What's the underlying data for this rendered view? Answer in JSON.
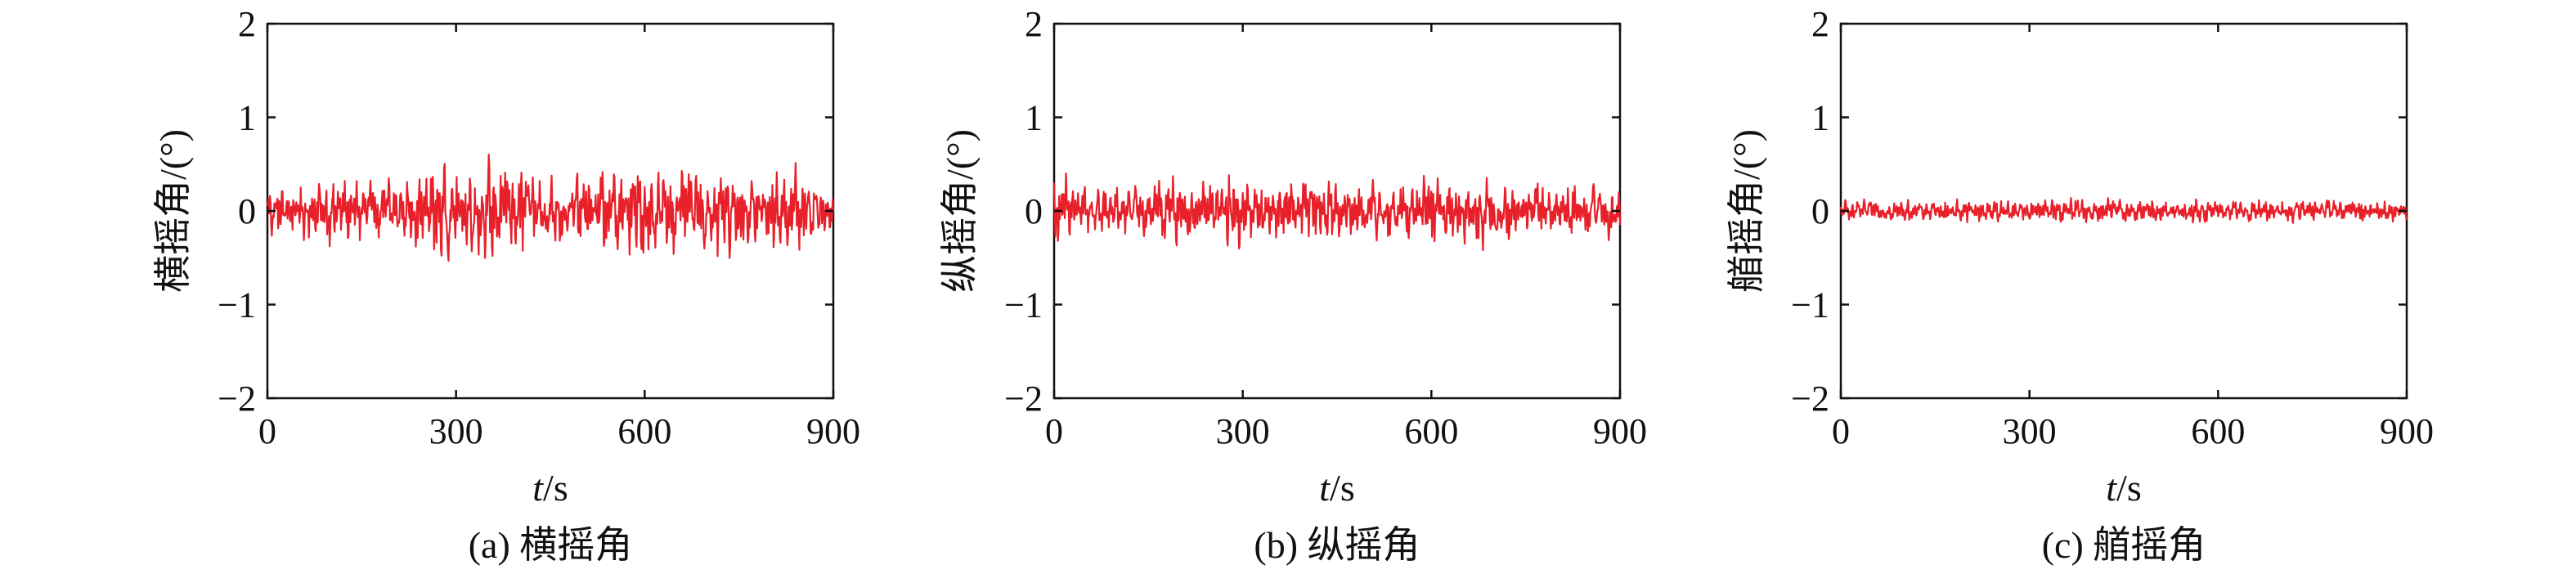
{
  "figure": {
    "colors": {
      "series": "#e8202a",
      "axis": "#111111"
    }
  },
  "chart_data": [
    {
      "type": "line",
      "caption": "(a) 横摇角",
      "ylabel": "横摇角/(°)",
      "xlabel_italic": "t",
      "xlabel_unit": "/s",
      "xlim": [
        0,
        900
      ],
      "ylim": [
        -2,
        2
      ],
      "xticks": [
        0,
        300,
        600,
        900
      ],
      "yticks": [
        -2,
        -1,
        0,
        1,
        2
      ],
      "ytick_labels": [
        "−2",
        "−1",
        "0",
        "1",
        "2"
      ],
      "grid": false,
      "legend": "none",
      "series": [
        {
          "sampling": "1 s",
          "color": "#e8202a",
          "x_start": 0,
          "x_end": 900,
          "envelope_x": [
            0,
            50,
            100,
            150,
            200,
            250,
            280,
            300,
            350,
            390,
            420,
            450,
            500,
            550,
            600,
            650,
            700,
            750,
            800,
            850,
            900
          ],
          "envelope_amplitude": [
            0.5,
            0.45,
            0.7,
            0.6,
            0.65,
            0.7,
            1.05,
            0.8,
            0.9,
            1.05,
            0.8,
            0.6,
            0.75,
            0.8,
            0.85,
            0.8,
            0.9,
            0.85,
            0.7,
            0.75,
            0.5
          ]
        }
      ]
    },
    {
      "type": "line",
      "caption": "(b) 纵摇角",
      "ylabel": "纵摇角/(°)",
      "xlabel_italic": "t",
      "xlabel_unit": "/s",
      "xlim": [
        0,
        900
      ],
      "ylim": [
        -2,
        2
      ],
      "xticks": [
        0,
        300,
        600,
        900
      ],
      "yticks": [
        -2,
        -1,
        0,
        1,
        2
      ],
      "ytick_labels": [
        "−2",
        "−1",
        "0",
        "1",
        "2"
      ],
      "grid": false,
      "legend": "none",
      "series": [
        {
          "sampling": "1 s",
          "color": "#e8202a",
          "x_start": 0,
          "x_end": 900,
          "envelope_x": [
            0,
            50,
            100,
            150,
            200,
            250,
            280,
            300,
            350,
            400,
            450,
            500,
            550,
            600,
            650,
            700,
            750,
            800,
            850,
            900
          ],
          "envelope_amplitude": [
            0.7,
            0.45,
            0.5,
            0.55,
            0.6,
            0.55,
            1.0,
            0.6,
            0.5,
            0.7,
            0.5,
            0.55,
            0.6,
            0.7,
            0.55,
            0.7,
            0.55,
            0.5,
            0.55,
            0.45
          ]
        }
      ]
    },
    {
      "type": "line",
      "caption": "(c) 艏摇角",
      "ylabel": "艏摇角/(°)",
      "xlabel_italic": "t",
      "xlabel_unit": "/s",
      "xlim": [
        0,
        900
      ],
      "ylim": [
        -2,
        2
      ],
      "xticks": [
        0,
        300,
        600,
        900
      ],
      "yticks": [
        -2,
        -1,
        0,
        1,
        2
      ],
      "ytick_labels": [
        "−2",
        "−1",
        "0",
        "1",
        "2"
      ],
      "grid": false,
      "legend": "none",
      "series": [
        {
          "sampling": "1 s",
          "color": "#e8202a",
          "x_start": 0,
          "x_end": 900,
          "envelope_x": [
            0,
            100,
            200,
            300,
            400,
            500,
            600,
            700,
            800,
            900
          ],
          "envelope_amplitude": [
            0.2,
            0.18,
            0.22,
            0.2,
            0.25,
            0.2,
            0.22,
            0.2,
            0.22,
            0.2
          ]
        }
      ]
    }
  ]
}
